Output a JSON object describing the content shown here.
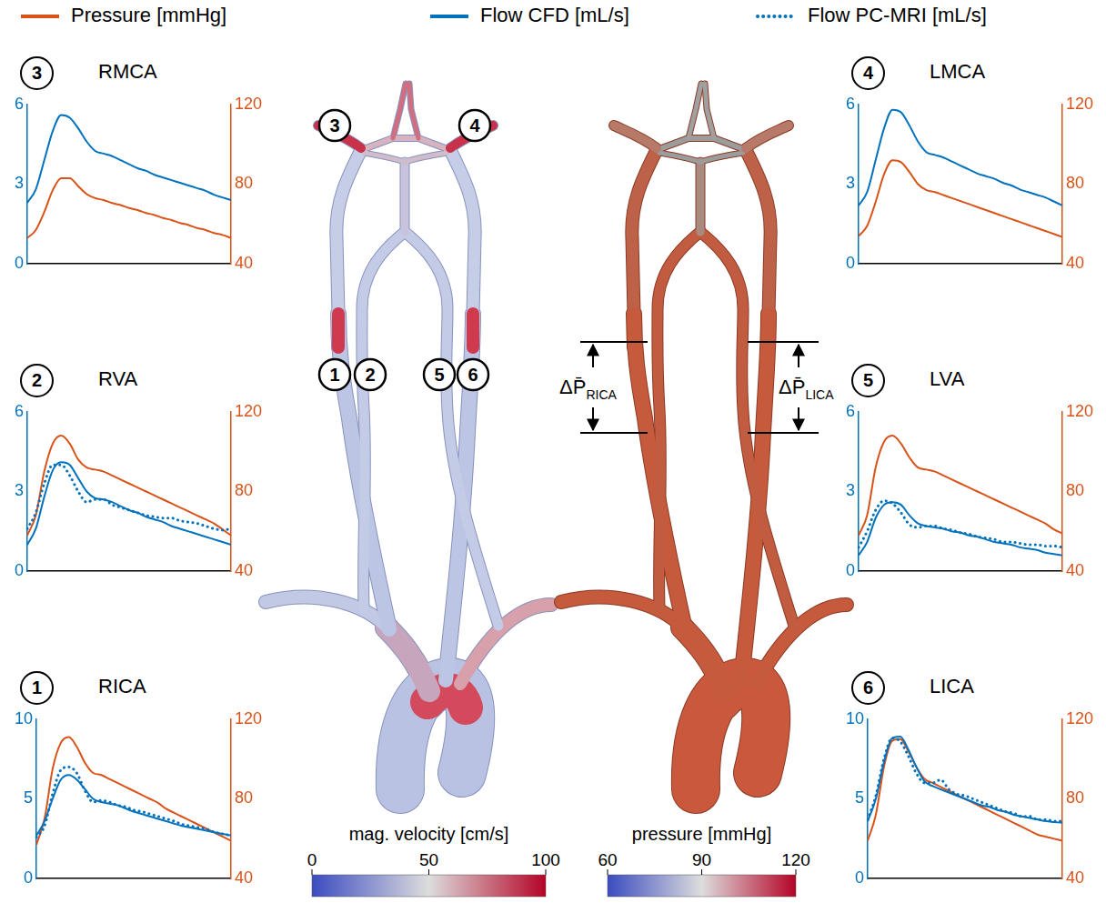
{
  "figure_legend": [
    {
      "name": "Pressure [mmHg]",
      "color": "#d95319",
      "line_style": "solid"
    },
    {
      "name": "Flow CFD [mL/s]",
      "color": "#0072bd",
      "line_style": "solid"
    },
    {
      "name": "Flow PC-MRI [mL/s]",
      "color": "#0072bd",
      "line_style": "dotted"
    }
  ],
  "chart_data": [
    {
      "type": "line",
      "panel": "3",
      "title": "RMCA",
      "categories": [
        null,
        null,
        null,
        null,
        null,
        null,
        null,
        null,
        null,
        null,
        null,
        null,
        null,
        null,
        null,
        null,
        null,
        null,
        null,
        null,
        null,
        null,
        null,
        null,
        null
      ],
      "ylim": [
        0,
        6
      ],
      "yticks": [
        0,
        3,
        6
      ],
      "y2lim": [
        40,
        120
      ],
      "y2ticks": [
        40,
        80,
        120
      ],
      "grid": false,
      "tick_labels": "y",
      "series": [
        {
          "name": "Flow CFD [mL/s]",
          "color": "#0072bd",
          "line_style": "solid",
          "values": [
            2.3,
            2.8,
            3.9,
            5.0,
            5.6,
            5.5,
            5.1,
            4.6,
            4.25,
            4.15,
            4.05,
            3.9,
            3.75,
            3.6,
            3.5,
            3.35,
            3.25,
            3.15,
            3.05,
            2.95,
            2.85,
            2.75,
            2.6,
            2.5,
            2.4
          ]
        },
        {
          "name": "Pressure [mmHg]",
          "color": "#d95319",
          "line_style": "solid",
          "axis": "y2",
          "values": [
            53,
            57,
            66,
            77,
            83,
            83,
            79,
            75,
            73,
            72,
            70.5,
            69.5,
            68,
            67,
            65.5,
            64.5,
            63,
            62,
            60.5,
            59.5,
            58,
            57,
            55.5,
            54.5,
            53
          ]
        }
      ]
    },
    {
      "type": "line",
      "panel": "4",
      "title": "LMCA",
      "categories": [
        null,
        null,
        null,
        null,
        null,
        null,
        null,
        null,
        null,
        null,
        null,
        null,
        null,
        null,
        null,
        null,
        null,
        null,
        null,
        null,
        null,
        null,
        null,
        null,
        null
      ],
      "ylim": [
        0,
        6
      ],
      "yticks": [
        0,
        3,
        6
      ],
      "y2lim": [
        40,
        120
      ],
      "y2ticks": [
        40,
        80,
        120
      ],
      "grid": false,
      "tick_labels": "y",
      "series": [
        {
          "name": "Flow CFD [mL/s]",
          "color": "#0072bd",
          "line_style": "solid",
          "values": [
            2.2,
            2.7,
            3.9,
            5.1,
            5.8,
            5.7,
            5.2,
            4.6,
            4.2,
            4.1,
            4.0,
            3.85,
            3.7,
            3.55,
            3.4,
            3.3,
            3.2,
            3.05,
            2.95,
            2.8,
            2.7,
            2.6,
            2.5,
            2.35,
            2.2
          ]
        },
        {
          "name": "Pressure [mmHg]",
          "color": "#d95319",
          "line_style": "solid",
          "axis": "y2",
          "values": [
            54,
            59,
            71,
            85,
            92,
            91,
            86,
            80,
            77,
            76,
            74.5,
            73,
            71.5,
            70,
            68.5,
            67,
            65.5,
            64,
            62.5,
            61,
            59.5,
            58,
            56.5,
            55,
            53.5
          ]
        }
      ]
    },
    {
      "type": "line",
      "panel": "2",
      "title": "RVA",
      "categories": [
        null,
        null,
        null,
        null,
        null,
        null,
        null,
        null,
        null,
        null,
        null,
        null,
        null,
        null,
        null,
        null,
        null,
        null,
        null,
        null,
        null,
        null,
        null,
        null,
        null
      ],
      "ylim": [
        0,
        6
      ],
      "yticks": [
        0,
        3,
        6
      ],
      "y2lim": [
        40,
        120
      ],
      "y2ticks": [
        40,
        80,
        120
      ],
      "grid": false,
      "tick_labels": "y",
      "series": [
        {
          "name": "Flow CFD [mL/s]",
          "color": "#0072bd",
          "line_style": "solid",
          "values": [
            1.0,
            1.6,
            2.8,
            3.8,
            4.1,
            4.0,
            3.5,
            3.0,
            2.75,
            2.7,
            2.6,
            2.45,
            2.3,
            2.2,
            2.05,
            1.95,
            1.85,
            1.7,
            1.6,
            1.5,
            1.4,
            1.3,
            1.2,
            1.1,
            1.0
          ]
        },
        {
          "name": "Flow PC-MRI [mL/s]",
          "color": "#0072bd",
          "line_style": "dotted",
          "values": [
            1.6,
            2.2,
            3.3,
            4.0,
            4.0,
            3.6,
            3.0,
            2.6,
            2.7,
            2.7,
            2.5,
            2.4,
            2.3,
            2.2,
            2.1,
            2.05,
            2.0,
            2.0,
            1.9,
            1.85,
            1.8,
            1.7,
            1.6,
            1.55,
            1.6
          ]
        },
        {
          "name": "Pressure [mmHg]",
          "color": "#d95319",
          "line_style": "solid",
          "axis": "y2",
          "values": [
            58,
            68,
            90,
            104,
            108,
            104,
            96,
            92,
            91,
            90,
            88,
            86,
            84,
            82,
            80,
            78,
            76,
            74,
            72,
            70,
            68,
            66,
            64,
            61,
            58
          ]
        }
      ]
    },
    {
      "type": "line",
      "panel": "5",
      "title": "LVA",
      "categories": [
        null,
        null,
        null,
        null,
        null,
        null,
        null,
        null,
        null,
        null,
        null,
        null,
        null,
        null,
        null,
        null,
        null,
        null,
        null,
        null,
        null,
        null,
        null,
        null,
        null
      ],
      "ylim": [
        0,
        6
      ],
      "yticks": [
        0,
        3,
        6
      ],
      "y2lim": [
        40,
        120
      ],
      "y2ticks": [
        40,
        80,
        120
      ],
      "grid": false,
      "tick_labels": "y",
      "series": [
        {
          "name": "Flow CFD [mL/s]",
          "color": "#0072bd",
          "line_style": "solid",
          "values": [
            0.6,
            1.1,
            2.0,
            2.5,
            2.6,
            2.5,
            2.1,
            1.8,
            1.7,
            1.65,
            1.6,
            1.5,
            1.45,
            1.35,
            1.3,
            1.2,
            1.1,
            1.05,
            1.0,
            0.9,
            0.85,
            0.8,
            0.7,
            0.65,
            0.6
          ]
        },
        {
          "name": "Flow PC-MRI [mL/s]",
          "color": "#0072bd",
          "line_style": "dotted",
          "values": [
            0.9,
            1.5,
            2.3,
            2.65,
            2.55,
            2.2,
            1.75,
            1.65,
            1.7,
            1.7,
            1.6,
            1.55,
            1.45,
            1.4,
            1.3,
            1.25,
            1.2,
            1.1,
            1.1,
            1.05,
            1.0,
            1.0,
            0.95,
            0.95,
            0.9
          ]
        },
        {
          "name": "Pressure [mmHg]",
          "color": "#d95319",
          "line_style": "solid",
          "axis": "y2",
          "values": [
            58,
            68,
            92,
            105,
            108,
            104,
            97,
            92,
            91,
            90,
            88,
            86,
            84,
            82,
            80,
            78,
            76,
            74,
            72,
            70,
            68,
            66,
            64,
            61,
            59
          ]
        }
      ]
    },
    {
      "type": "line",
      "panel": "1",
      "title": "RICA",
      "categories": [
        null,
        null,
        null,
        null,
        null,
        null,
        null,
        null,
        null,
        null,
        null,
        null,
        null,
        null,
        null,
        null,
        null,
        null,
        null,
        null,
        null,
        null,
        null,
        null,
        null
      ],
      "ylim": [
        0,
        10
      ],
      "yticks": [
        0,
        5,
        10
      ],
      "y2lim": [
        40,
        120
      ],
      "y2ticks": [
        40,
        80,
        120
      ],
      "grid": false,
      "tick_labels": "y",
      "series": [
        {
          "name": "Flow CFD [mL/s]",
          "color": "#0072bd",
          "line_style": "solid",
          "values": [
            2.7,
            3.6,
            5.0,
            6.2,
            6.5,
            6.2,
            5.6,
            5.0,
            4.8,
            4.7,
            4.6,
            4.4,
            4.2,
            4.05,
            3.9,
            3.75,
            3.6,
            3.45,
            3.3,
            3.2,
            3.1,
            3.0,
            2.9,
            2.8,
            2.7
          ]
        },
        {
          "name": "Flow PC-MRI [mL/s]",
          "color": "#0072bd",
          "line_style": "dotted",
          "values": [
            2.6,
            3.3,
            5.3,
            6.8,
            7.0,
            6.6,
            5.5,
            4.8,
            4.9,
            4.8,
            4.6,
            4.5,
            4.3,
            4.2,
            4.05,
            3.9,
            3.75,
            3.6,
            3.4,
            3.3,
            3.2,
            3.1,
            2.9,
            2.8,
            2.7
          ]
        },
        {
          "name": "Pressure [mmHg]",
          "color": "#d95319",
          "line_style": "solid",
          "axis": "y2",
          "values": [
            57,
            70,
            95,
            108,
            111,
            106,
            98,
            93,
            92,
            90,
            88,
            86,
            84,
            82,
            80,
            78,
            75,
            73,
            71,
            69,
            67,
            65,
            63,
            61,
            59
          ]
        }
      ]
    },
    {
      "type": "line",
      "panel": "6",
      "title": "LICA",
      "categories": [
        null,
        null,
        null,
        null,
        null,
        null,
        null,
        null,
        null,
        null,
        null,
        null,
        null,
        null,
        null,
        null,
        null,
        null,
        null,
        null,
        null,
        null,
        null,
        null,
        null
      ],
      "ylim": [
        0,
        10
      ],
      "yticks": [
        0,
        5,
        10
      ],
      "y2lim": [
        40,
        120
      ],
      "y2ticks": [
        40,
        80,
        120
      ],
      "grid": false,
      "tick_labels": "y",
      "series": [
        {
          "name": "Flow CFD [mL/s]",
          "color": "#0072bd",
          "line_style": "solid",
          "values": [
            3.6,
            5.0,
            7.3,
            8.8,
            8.9,
            8.1,
            7.0,
            6.1,
            5.8,
            5.6,
            5.4,
            5.2,
            5.0,
            4.8,
            4.6,
            4.5,
            4.3,
            4.2,
            4.0,
            3.9,
            3.8,
            3.7,
            3.6,
            3.55,
            3.5
          ]
        },
        {
          "name": "Flow PC-MRI [mL/s]",
          "color": "#0072bd",
          "line_style": "dotted",
          "values": [
            3.7,
            5.2,
            7.5,
            8.8,
            8.6,
            7.7,
            6.6,
            6.0,
            6.0,
            6.2,
            5.6,
            5.3,
            5.2,
            5.0,
            4.8,
            4.6,
            4.4,
            4.2,
            4.1,
            3.9,
            3.9,
            3.7,
            3.7,
            3.6,
            3.6
          ]
        },
        {
          "name": "Pressure [mmHg]",
          "color": "#d95319",
          "line_style": "solid",
          "axis": "y2",
          "values": [
            59,
            72,
            96,
            109,
            110,
            104,
            96,
            90,
            88,
            86,
            84,
            82,
            80,
            78,
            76,
            74,
            72,
            70,
            68,
            66,
            64,
            62,
            61,
            60,
            59
          ]
        }
      ]
    }
  ],
  "diagram": {
    "vessel_labels": [
      "3",
      "4",
      "1",
      "2",
      "5",
      "6"
    ],
    "pressure_drops": [
      {
        "symbol": "ΔP̄",
        "subscript": "RICA"
      },
      {
        "symbol": "ΔP̄",
        "subscript": "LICA"
      }
    ],
    "colorbars": [
      {
        "title": "mag. velocity [cm/s]",
        "range": [
          0,
          100
        ],
        "ticks": [
          0,
          50,
          100
        ]
      },
      {
        "title": "pressure [mmHg]",
        "range": [
          60,
          120
        ],
        "ticks": [
          60,
          90,
          120
        ]
      }
    ]
  }
}
